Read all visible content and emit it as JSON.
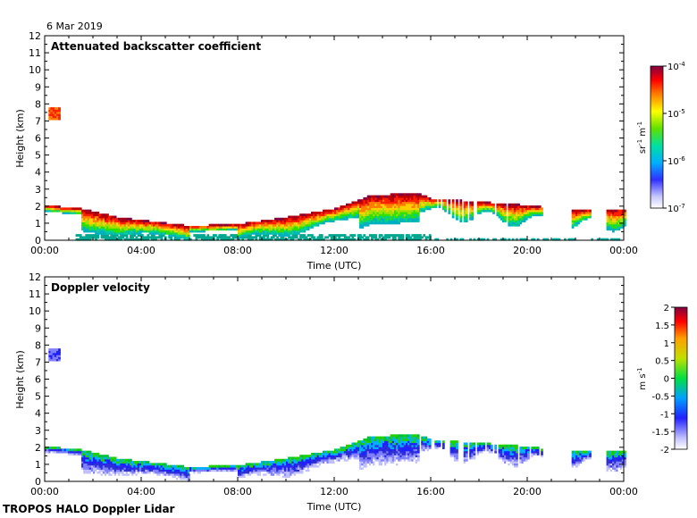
{
  "date_label": "6 Mar 2019",
  "footer": "TROPOS HALO Doppler Lidar",
  "chart_data": [
    {
      "type": "heatmap",
      "title": "Attenuated backscatter coefficient",
      "xlabel": "Time (UTC)",
      "ylabel": "Height (km)",
      "xlim": [
        0,
        24
      ],
      "ylim": [
        0,
        12
      ],
      "x_ticks": [
        "00:00",
        "04:00",
        "08:00",
        "12:00",
        "16:00",
        "20:00",
        "00:00"
      ],
      "y_ticks": [
        "0",
        "1",
        "2",
        "3",
        "4",
        "5",
        "6",
        "7",
        "8",
        "9",
        "10",
        "11",
        "12"
      ],
      "colorbar": {
        "unit_base": "sr",
        "unit_exp1": "-1",
        "unit_mid": " m",
        "unit_exp2": "-1",
        "scale": "log",
        "range": [
          1e-07,
          0.0001
        ],
        "ticks": [
          {
            "base": "10",
            "exp": "-4"
          },
          {
            "base": "10",
            "exp": "-5"
          },
          {
            "base": "10",
            "exp": "-6"
          },
          {
            "base": "10",
            "exp": "-7"
          }
        ]
      },
      "features": {
        "cloud_base_km": [
          [
            0,
            2.0
          ],
          [
            1.5,
            1.8
          ],
          [
            3,
            1.3
          ],
          [
            6,
            0.8
          ],
          [
            8,
            0.9
          ],
          [
            10,
            1.3
          ],
          [
            12,
            1.8
          ],
          [
            13.5,
            2.6
          ],
          [
            15.5,
            2.7
          ],
          [
            16,
            2.4
          ],
          [
            20,
            2.0
          ],
          [
            22,
            1.7
          ],
          [
            24,
            1.8
          ]
        ],
        "elevated_layer": {
          "x": [
            0.1,
            0.6
          ],
          "y": [
            7.0,
            7.8
          ]
        }
      }
    },
    {
      "type": "heatmap",
      "title": "Doppler velocity",
      "xlabel": "Time (UTC)",
      "ylabel": "Height (km)",
      "xlim": [
        0,
        24
      ],
      "ylim": [
        0,
        12
      ],
      "x_ticks": [
        "00:00",
        "04:00",
        "08:00",
        "12:00",
        "16:00",
        "20:00",
        "00:00"
      ],
      "y_ticks": [
        "0",
        "1",
        "2",
        "3",
        "4",
        "5",
        "6",
        "7",
        "8",
        "9",
        "10",
        "11",
        "12"
      ],
      "colorbar": {
        "unit_base": "m s",
        "unit_exp": "-1",
        "range": [
          -2,
          2
        ],
        "ticks": [
          "2",
          "1.5",
          "1",
          "0.5",
          "0",
          "-0.5",
          "-1",
          "-1.5",
          "-2"
        ]
      }
    }
  ]
}
